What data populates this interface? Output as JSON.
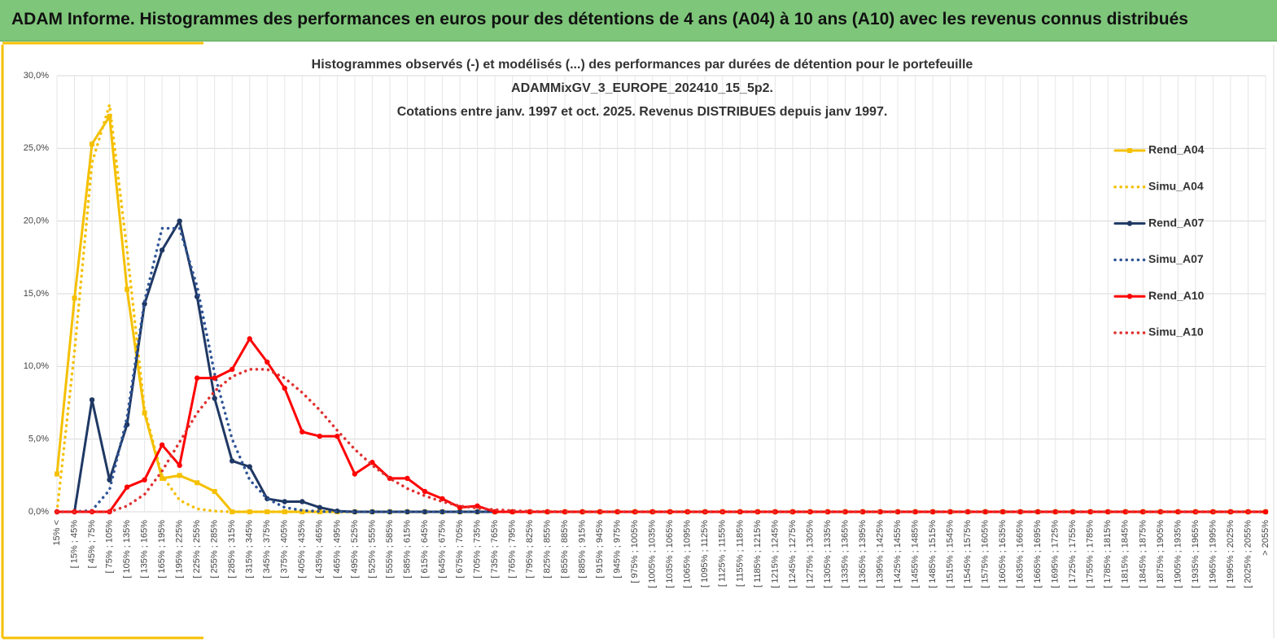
{
  "header": {
    "title": "ADAM Informe. Histogrammes des performances en euros pour des détentions de 4 ans (A04) à 10 ans (A10) avec les revenus connus distribués"
  },
  "chart_data": {
    "type": "line",
    "title": [
      "Histogrammes observés (-) et modélisés (...) des performances par durées de détention pour le portefeuille",
      "ADAMMixGV_3_EUROPE_202410_15_5p2.",
      "Cotations entre janv. 1997 et oct. 2025. Revenus DISTRIBUES depuis janv 1997."
    ],
    "categories": [
      "15% <",
      "[ 15% ; 45%",
      "[ 45% ; 75%",
      "[ 75% ; 105%",
      "[ 105% ; 135%",
      "[ 135% ; 165%",
      "[ 165% ; 195%",
      "[ 195% ; 225%",
      "[ 225% ; 255%",
      "[ 255% ; 285%",
      "[ 285% ; 315%",
      "[ 315% ; 345%",
      "[ 345% ; 375%",
      "[ 375% ; 405%",
      "[ 405% ; 435%",
      "[ 435% ; 465%",
      "[ 465% ; 495%",
      "[ 495% ; 525%",
      "[ 525% ; 555%",
      "[ 555% ; 585%",
      "[ 585% ; 615%",
      "[ 615% ; 645%",
      "[ 645% ; 675%",
      "[ 675% ; 705%",
      "[ 705% ; 735%",
      "[ 735% ; 765%",
      "[ 765% ; 795%",
      "[ 795% ; 825%",
      "[ 825% ; 855%",
      "[ 855% ; 885%",
      "[ 885% ; 915%",
      "[ 915% ; 945%",
      "[ 945% ; 975%",
      "[ 975% ; 1005%",
      "[ 1005% ; 1035%",
      "[ 1035% ; 1065%",
      "[ 1065% ; 1095%",
      "[ 1095% ; 1125%",
      "[ 1125% ; 1155%",
      "[ 1155% ; 1185%",
      "[ 1185% ; 1215%",
      "[ 1215% ; 1245%",
      "[ 1245% ; 1275%",
      "[ 1275% ; 1305%",
      "[ 1305% ; 1335%",
      "[ 1335% ; 1365%",
      "[ 1365% ; 1395%",
      "[ 1395% ; 1425%",
      "[ 1425% ; 1455%",
      "[ 1455% ; 1485%",
      "[ 1485% ; 1515%",
      "[ 1515% ; 1545%",
      "[ 1545% ; 1575%",
      "[ 1575% ; 1605%",
      "[ 1605% ; 1635%",
      "[ 1635% ; 1665%",
      "[ 1665% ; 1695%",
      "[ 1695% ; 1725%",
      "[ 1725% ; 1755%",
      "[ 1755% ; 1785%",
      "[ 1785% ; 1815%",
      "[ 1815% ; 1845%",
      "[ 1845% ; 1875%",
      "[ 1875% ; 1905%",
      "[ 1905% ; 1935%",
      "[ 1935% ; 1965%",
      "[ 1965% ; 1995%",
      "[ 1995% ; 2025%",
      "[ 2025% ; 2055%",
      "> 2055%"
    ],
    "series": [
      {
        "name": "Rend_A04",
        "color": "#f5c000",
        "style": "solid",
        "marker": "square",
        "values": [
          2.6,
          14.7,
          25.3,
          27.2,
          15.3,
          6.8,
          2.3,
          2.5,
          2.0,
          1.4,
          0,
          0,
          0,
          0,
          0,
          0,
          0,
          0,
          0,
          0,
          0,
          0,
          0,
          0,
          0,
          0,
          0,
          0,
          0,
          0,
          0,
          0,
          0,
          0,
          0,
          0,
          0,
          0,
          0,
          0,
          0,
          0,
          0,
          0,
          0,
          0,
          0,
          0,
          0,
          0,
          0,
          0,
          0,
          0,
          0,
          0,
          0,
          0,
          0,
          0,
          0,
          0,
          0,
          0,
          0,
          0,
          0,
          0,
          0,
          0
        ]
      },
      {
        "name": "Simu_A04",
        "color": "#f5c000",
        "style": "dotted",
        "marker": "none",
        "values": [
          0,
          11,
          24,
          28,
          18,
          7,
          2.5,
          0.8,
          0.2,
          0.05,
          0,
          0,
          0,
          0,
          0,
          0,
          0,
          0,
          0,
          0,
          0,
          0,
          0,
          0,
          0,
          0,
          0,
          0,
          0,
          0,
          0,
          0,
          0,
          0,
          0,
          0,
          0,
          0,
          0,
          0,
          0,
          0,
          0,
          0,
          0,
          0,
          0,
          0,
          0,
          0,
          0,
          0,
          0,
          0,
          0,
          0,
          0,
          0,
          0,
          0,
          0,
          0,
          0,
          0,
          0,
          0,
          0,
          0,
          0,
          0
        ]
      },
      {
        "name": "Rend_A07",
        "color": "#1f3864",
        "style": "solid",
        "marker": "circle",
        "values": [
          0,
          0,
          7.7,
          2.2,
          6.0,
          14.3,
          18,
          20,
          14.8,
          7.8,
          3.5,
          3.1,
          0.9,
          0.7,
          0.7,
          0.3,
          0.05,
          0,
          0,
          0,
          0,
          0,
          0,
          0,
          0,
          0,
          0,
          0,
          0,
          0,
          0,
          0,
          0,
          0,
          0,
          0,
          0,
          0,
          0,
          0,
          0,
          0,
          0,
          0,
          0,
          0,
          0,
          0,
          0,
          0,
          0,
          0,
          0,
          0,
          0,
          0,
          0,
          0,
          0,
          0,
          0,
          0,
          0,
          0,
          0,
          0,
          0,
          0,
          0,
          0
        ]
      },
      {
        "name": "Simu_A07",
        "color": "#2f5597",
        "style": "dotted",
        "marker": "none",
        "values": [
          0,
          0,
          0.1,
          1.5,
          6.5,
          14.5,
          19.5,
          19.5,
          15.5,
          9.5,
          5,
          2.2,
          0.9,
          0.3,
          0.1,
          0.02,
          0,
          0,
          0,
          0,
          0,
          0,
          0,
          0,
          0,
          0,
          0,
          0,
          0,
          0,
          0,
          0,
          0,
          0,
          0,
          0,
          0,
          0,
          0,
          0,
          0,
          0,
          0,
          0,
          0,
          0,
          0,
          0,
          0,
          0,
          0,
          0,
          0,
          0,
          0,
          0,
          0,
          0,
          0,
          0,
          0,
          0,
          0,
          0,
          0,
          0,
          0,
          0,
          0,
          0
        ]
      },
      {
        "name": "Rend_A10",
        "color": "#ff0000",
        "style": "solid",
        "marker": "circle",
        "values": [
          0,
          0,
          0,
          0,
          1.7,
          2.2,
          4.6,
          3.2,
          9.2,
          9.2,
          9.8,
          11.9,
          10.3,
          8.5,
          5.5,
          5.2,
          5.2,
          2.6,
          3.4,
          2.3,
          2.3,
          1.4,
          0.9,
          0.3,
          0.4,
          0,
          0,
          0,
          0,
          0,
          0,
          0,
          0,
          0,
          0,
          0,
          0,
          0,
          0,
          0,
          0,
          0,
          0,
          0,
          0,
          0,
          0,
          0,
          0,
          0,
          0,
          0,
          0,
          0,
          0,
          0,
          0,
          0,
          0,
          0,
          0,
          0,
          0,
          0,
          0,
          0,
          0,
          0,
          0,
          0
        ]
      },
      {
        "name": "Simu_A10",
        "color": "#e03030",
        "style": "dotted",
        "marker": "none",
        "values": [
          0,
          0,
          0,
          0,
          0.4,
          1.2,
          2.8,
          4.8,
          6.8,
          8.3,
          9.3,
          9.8,
          9.8,
          9.2,
          8.2,
          7,
          5.6,
          4.3,
          3.2,
          2.3,
          1.6,
          1.1,
          0.7,
          0.4,
          0.25,
          0.15,
          0.08,
          0.04,
          0.02,
          0,
          0,
          0,
          0,
          0,
          0,
          0,
          0,
          0,
          0,
          0,
          0,
          0,
          0,
          0,
          0,
          0,
          0,
          0,
          0,
          0,
          0,
          0,
          0,
          0,
          0,
          0,
          0,
          0,
          0,
          0,
          0,
          0,
          0,
          0,
          0,
          0,
          0,
          0,
          0,
          0
        ]
      }
    ],
    "ylim": [
      0,
      30
    ],
    "yticks": [
      {
        "value": 0,
        "label": "0,0%"
      },
      {
        "value": 5,
        "label": "5,0%"
      },
      {
        "value": 10,
        "label": "10,0%"
      },
      {
        "value": 15,
        "label": "15,0%"
      },
      {
        "value": 20,
        "label": "20,0%"
      },
      {
        "value": 25,
        "label": "25,0%"
      },
      {
        "value": 30,
        "label": "30,0%"
      }
    ],
    "grid": true,
    "legend": "right"
  }
}
